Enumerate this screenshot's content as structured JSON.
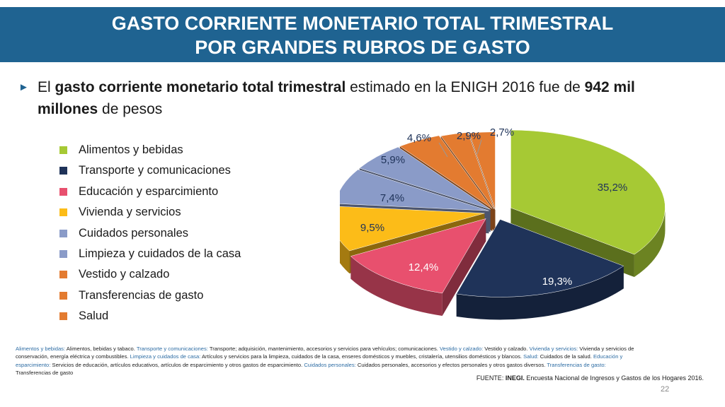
{
  "header": {
    "title_line1": "GASTO CORRIENTE MONETARIO TOTAL TRIMESTRAL",
    "title_line2": "POR GRANDES RUBROS DE GASTO"
  },
  "intro": {
    "p1": "El ",
    "b1": "gasto corriente monetario total trimestral",
    "p2": " estimado en la ENIGH 2016 fue de ",
    "b2": "942 mil millones",
    "p3": " de pesos"
  },
  "chart_data": {
    "type": "pie",
    "categories": [
      "Alimentos y bebidas",
      "Transporte y comunicaciones",
      "Educación y esparcimiento",
      "Vivienda y servicios",
      "Cuidados personales",
      "Limpieza y cuidados de la casa",
      "Vestido y calzado",
      "Transferencias de gasto",
      "Salud"
    ],
    "values": [
      35.2,
      19.3,
      12.4,
      9.5,
      7.4,
      5.9,
      4.6,
      2.9,
      2.7
    ],
    "labels": [
      "35,2%",
      "19,3%",
      "12,4%",
      "9,5%",
      "7,4%",
      "5,9%",
      "4,6%",
      "2,9%",
      "2,7%"
    ],
    "colors": [
      "#a6c934",
      "#1f3359",
      "#e8506e",
      "#fcbc18",
      "#8a9bc8",
      "#8a9bc8",
      "#e37b30",
      "#e37b30",
      "#e37b30"
    ],
    "legend": "left",
    "style": "3d-exploded"
  },
  "notes": [
    {
      "cat": "Alimentos y bebidas:",
      "desc": " Alimentos, bebidas y tabaco. "
    },
    {
      "cat": "Transporte y comunicaciones:",
      "desc": " Transporte; adquisición, mantenimiento, accesorios y servicios para vehículos; comunicaciones. "
    },
    {
      "cat": "Vestido y calzado:",
      "desc": " Vestido y calzado. "
    },
    {
      "cat": "Vivienda y servicios:",
      "desc": " Vivienda y servicios de conservación, energía eléctrica y combustibles. "
    },
    {
      "cat": "Limpieza y cuidados de casa:",
      "desc": " Artículos y servicios para la limpieza, cuidados de la casa, enseres domésticos y muebles, cristalería, utensilios domésticos y blancos. "
    },
    {
      "cat": "Salud:",
      "desc": " Cuidados de la salud. "
    },
    {
      "cat": "Educación y esparcimiento:",
      "desc": " Servicios de educación, artículos educativos, artículos de esparcimiento y otros gastos de esparcimiento. "
    },
    {
      "cat": "Cuidados personales:",
      "desc": " Cuidados personales, accesorios y efectos personales y otros gastos diversos. "
    },
    {
      "cat": "Transferencias de gasto:",
      "desc": " Transferencias de gasto"
    }
  ],
  "source": {
    "prefix": "FUENTE: ",
    "org": "INEGI.",
    "text": " Encuesta Nacional de Ingresos y Gastos de los Hogares 2016."
  },
  "page_number": "22"
}
